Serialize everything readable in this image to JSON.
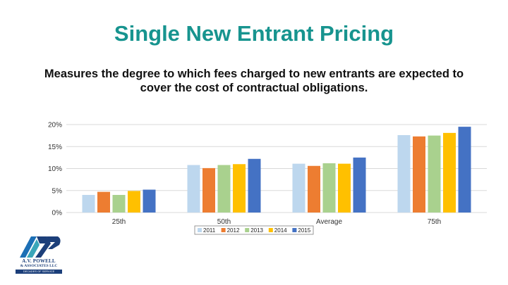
{
  "slide": {
    "title": "Single New Entrant Pricing",
    "subtitle": "Measures the degree to which fees charged to new entrants are expected to cover the cost of contractual obligations."
  },
  "logo": {
    "icon": "avp-logo-icon",
    "line1": "A.V. POWELL",
    "line2": "& ASSOCIATES LLC",
    "line3": "DECADES OF SERVICE"
  },
  "chart_data": {
    "type": "bar",
    "categories": [
      "25th",
      "50th",
      "Average",
      "75th"
    ],
    "series": [
      {
        "name": "2011",
        "color": "#bdd7ee",
        "values": [
          4.0,
          10.8,
          11.1,
          17.6
        ]
      },
      {
        "name": "2012",
        "color": "#ed7d31",
        "values": [
          4.7,
          10.1,
          10.6,
          17.3
        ]
      },
      {
        "name": "2013",
        "color": "#a9d18e",
        "values": [
          4.0,
          10.8,
          11.2,
          17.5
        ]
      },
      {
        "name": "2014",
        "color": "#ffc000",
        "values": [
          4.9,
          11.0,
          11.1,
          18.1
        ]
      },
      {
        "name": "2015",
        "color": "#4472c4",
        "values": [
          5.2,
          12.2,
          12.5,
          19.5
        ]
      }
    ],
    "ylim": [
      0,
      20
    ],
    "yticks": [
      "0%",
      "5%",
      "10%",
      "15%",
      "20%"
    ],
    "ytick_values": [
      0,
      5,
      10,
      15,
      20
    ],
    "grid": true,
    "legend_position": "bottom",
    "xlabel": "",
    "ylabel": ""
  }
}
